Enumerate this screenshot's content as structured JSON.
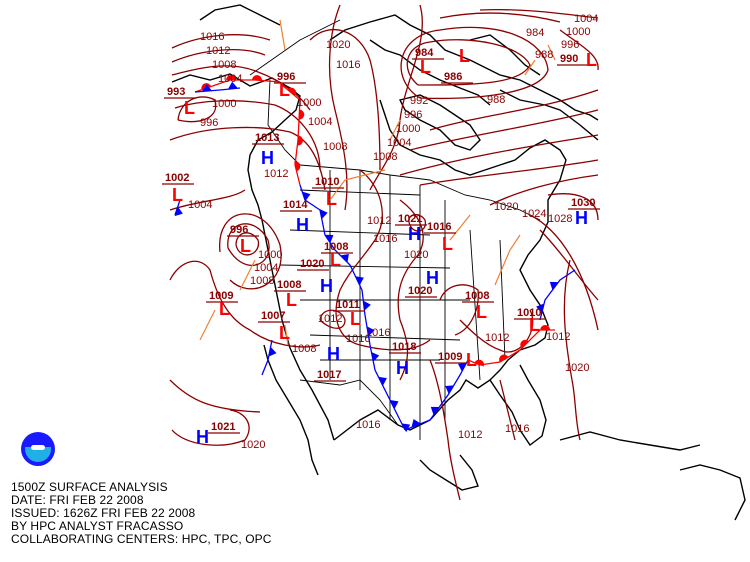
{
  "caption": {
    "line1": "1500Z SURFACE ANALYSIS",
    "line2": "DATE: FRI FEB 22 2008",
    "line3": "ISSUED: 1626Z FRI FEB 22 2008",
    "line4": "BY HPC ANALYST FRACASSO",
    "line5": "COLLABORATING CENTERS: HPC, TPC, OPC"
  },
  "logo": {
    "name": "noaa-logo",
    "text": "NOAA"
  },
  "colors": {
    "isobar": "#8b0000",
    "low": "#ff0000",
    "high": "#0000ff",
    "trough": "#f08030",
    "coast": "#000000"
  },
  "centers": [
    {
      "type": "L",
      "pressure": "993"
    },
    {
      "type": "L",
      "pressure": "996"
    },
    {
      "type": "L",
      "pressure": "984"
    },
    {
      "type": "L",
      "pressure": "986"
    },
    {
      "type": "L",
      "pressure": "990"
    },
    {
      "type": "H",
      "pressure": "1013"
    },
    {
      "type": "L",
      "pressure": "1002"
    },
    {
      "type": "L",
      "pressure": "1010"
    },
    {
      "type": "H",
      "pressure": "1014"
    },
    {
      "type": "L",
      "pressure": "996"
    },
    {
      "type": "L",
      "pressure": "1008"
    },
    {
      "type": "H",
      "pressure": "1020"
    },
    {
      "type": "H",
      "pressure": "1021"
    },
    {
      "type": "L",
      "pressure": "1016"
    },
    {
      "type": "H",
      "pressure": "1030"
    },
    {
      "type": "L",
      "pressure": "1008"
    },
    {
      "type": "L",
      "pressure": "1009"
    },
    {
      "type": "L",
      "pressure": "1007"
    },
    {
      "type": "L",
      "pressure": "1011"
    },
    {
      "type": "H",
      "pressure": "1020"
    },
    {
      "type": "L",
      "pressure": "1008"
    },
    {
      "type": "L",
      "pressure": "1010"
    },
    {
      "type": "H",
      "pressure": "1018"
    },
    {
      "type": "L",
      "pressure": "1009"
    },
    {
      "type": "H",
      "pressure": "1017"
    },
    {
      "type": "H",
      "pressure": "1021"
    }
  ],
  "isobar_labels": [
    "1016",
    "1012",
    "1008",
    "1004",
    "1000",
    "996",
    "1020",
    "1016",
    "1000",
    "1004",
    "1008",
    "1008",
    "1004",
    "1000",
    "996",
    "992",
    "984",
    "988",
    "988",
    "996",
    "1000",
    "1004",
    "1012",
    "1004",
    "1000",
    "1004",
    "1008",
    "1012",
    "1016",
    "1012",
    "1020",
    "1016",
    "1012",
    "1020",
    "1024",
    "1028",
    "1008",
    "1016",
    "1012",
    "1020",
    "1016",
    "1012",
    "1016",
    "1020"
  ]
}
